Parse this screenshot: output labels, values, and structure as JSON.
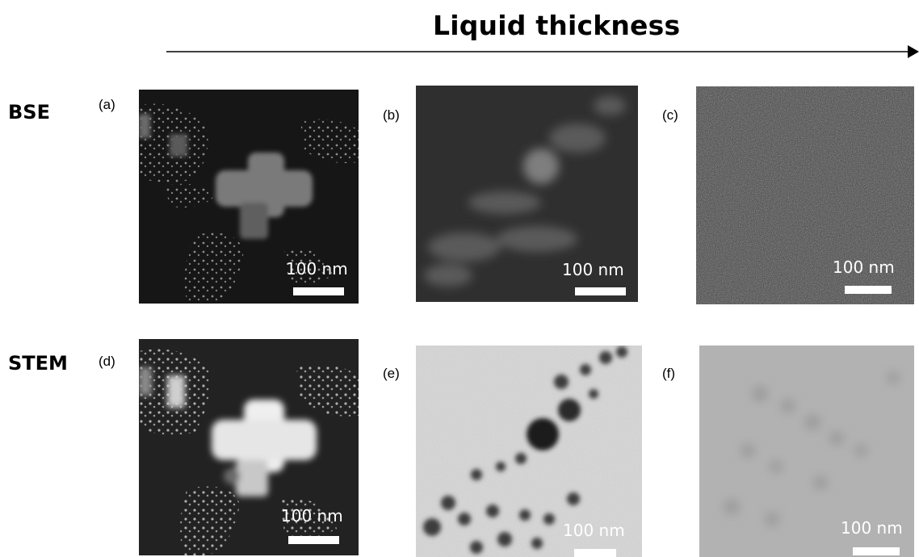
{
  "header": {
    "title": "Liquid thickness"
  },
  "rows": [
    {
      "label": "BSE"
    },
    {
      "label": "STEM"
    }
  ],
  "panels": [
    {
      "label": "(a)",
      "scale_text": "100 nm"
    },
    {
      "label": "(b)",
      "scale_text": "100 nm"
    },
    {
      "label": "(c)",
      "scale_text": "100 nm"
    },
    {
      "label": "(d)",
      "scale_text": "100 nm"
    },
    {
      "label": "(e)",
      "scale_text": "100 nm"
    },
    {
      "label": "(f)",
      "scale_text": "100 nm"
    }
  ]
}
